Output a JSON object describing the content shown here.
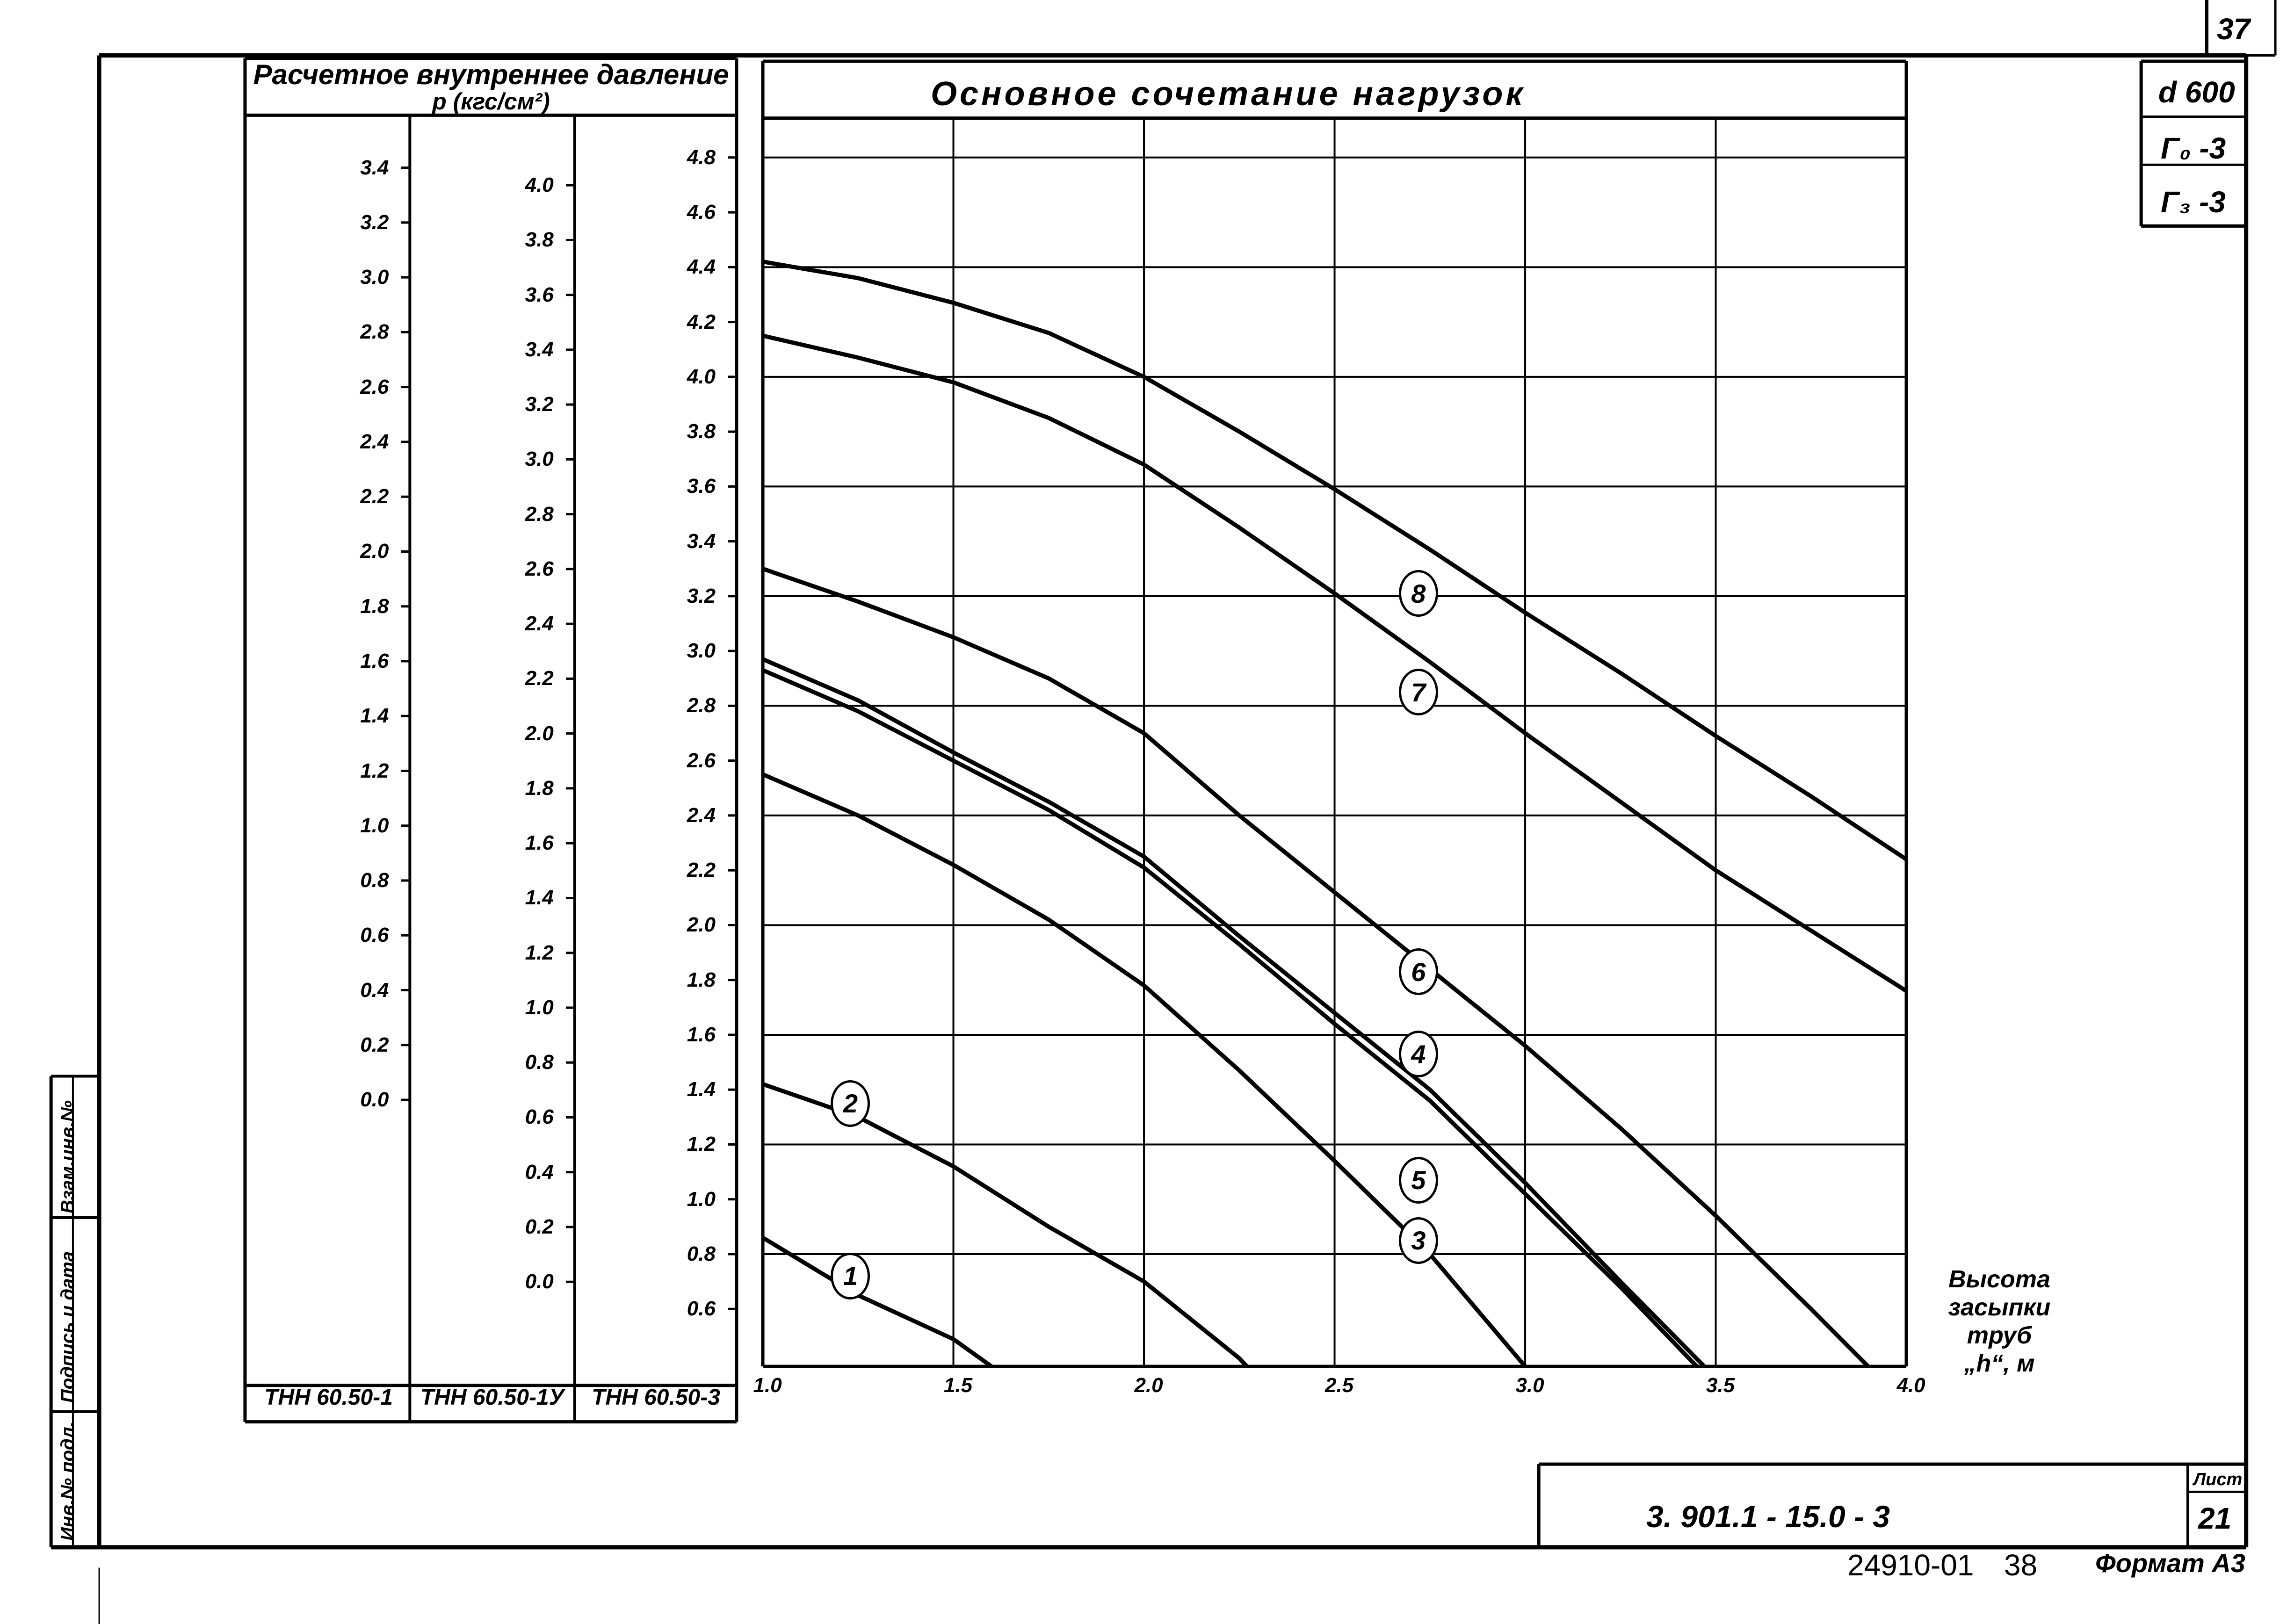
{
  "page": {
    "sheet_corner_number": "37",
    "stamp_boxes": [
      "d 600",
      "Г₀ -3",
      "Г₃ -3"
    ],
    "pressure_header_line1": "Расчетное внутреннее давление",
    "pressure_header_line2": "p (кгс/см²)",
    "chart_title": "Основное сочетание нагрузок",
    "x_axis_label_lines": [
      "Высота",
      "засыпки",
      "труб",
      "„h“, м"
    ],
    "scale_columns": [
      {
        "name": "ТНН 60.50-1",
        "ticks": [
          "3.4",
          "3.2",
          "3.0",
          "2.8",
          "2.6",
          "2.4",
          "2.2",
          "2.0",
          "1.8",
          "1.6",
          "1.4",
          "1.2",
          "1.0",
          "0.8",
          "0.6",
          "0.4",
          "0.2",
          "0.0"
        ]
      },
      {
        "name": "ТНН 60.50-1У",
        "ticks": [
          "4.0",
          "3.8",
          "3.6",
          "3.4",
          "3.2",
          "3.0",
          "2.8",
          "2.6",
          "2.4",
          "2.2",
          "2.0",
          "1.8",
          "1.6",
          "1.4",
          "1.2",
          "1.0",
          "0.8",
          "0.6",
          "0.4",
          "0.2",
          "0.0"
        ]
      },
      {
        "name": "ТНН 60.50-3",
        "ticks": [
          "4.8",
          "4.6",
          "4.4",
          "4.2",
          "4.0",
          "3.8",
          "3.6",
          "3.4",
          "3.2",
          "3.0",
          "2.8",
          "2.6",
          "2.4",
          "2.2",
          "2.0",
          "1.8",
          "1.6",
          "1.4",
          "1.2",
          "1.0",
          "0.8",
          "0.6"
        ]
      }
    ],
    "left_stamp": [
      "Взам.инв.№",
      "Подпись и дата",
      "Инв.№ подл."
    ],
    "title_block": {
      "designation": "3. 901.1 - 15.0 - 3",
      "sheet_label": "Лист",
      "sheet_number": "21"
    },
    "footer": {
      "order_number": "24910-01",
      "page_number": "38",
      "format": "Формат А3"
    }
  },
  "chart_data": {
    "type": "line",
    "title": "Основное сочетание нагрузок",
    "xlabel": "Высота засыпки труб „h“, м",
    "ylabel": "Расчетное внутреннее давление p (кгс/см²)",
    "xlim": [
      1.0,
      4.0
    ],
    "x_ticks": [
      "1.0",
      "1.5",
      "2.0",
      "2.5",
      "3.0",
      "3.5",
      "4.0"
    ],
    "ylim_reference_scale": "ТНН 60.50-3",
    "ylim": [
      0.39,
      4.94
    ],
    "grid": true,
    "series": [
      {
        "name": "1",
        "x": [
          1.0,
          1.25,
          1.5,
          1.6
        ],
        "y": [
          0.86,
          0.65,
          0.49,
          0.39
        ]
      },
      {
        "name": "2",
        "x": [
          1.0,
          1.25,
          1.5,
          1.75,
          2.0,
          2.25,
          2.27
        ],
        "y": [
          1.42,
          1.3,
          1.12,
          0.9,
          0.7,
          0.42,
          0.39
        ]
      },
      {
        "name": "3",
        "x": [
          1.0,
          1.25,
          1.5,
          1.75,
          2.0,
          2.25,
          2.5,
          2.75,
          3.0
        ],
        "y": [
          2.55,
          2.4,
          2.22,
          2.02,
          1.78,
          1.47,
          1.14,
          0.8,
          0.39
        ]
      },
      {
        "name": "4",
        "x": [
          1.0,
          1.25,
          1.5,
          1.75,
          2.0,
          2.25,
          2.5,
          2.75,
          3.0,
          3.25,
          3.47
        ],
        "y": [
          2.97,
          2.82,
          2.63,
          2.45,
          2.25,
          1.96,
          1.68,
          1.4,
          1.06,
          0.7,
          0.39
        ]
      },
      {
        "name": "5",
        "x": [
          1.0,
          1.25,
          1.5,
          1.75,
          2.0,
          2.25,
          2.5,
          2.75,
          3.0,
          3.25,
          3.45
        ],
        "y": [
          2.93,
          2.78,
          2.6,
          2.42,
          2.21,
          1.93,
          1.64,
          1.36,
          1.02,
          0.68,
          0.39
        ]
      },
      {
        "name": "6",
        "x": [
          1.0,
          1.25,
          1.5,
          1.75,
          2.0,
          2.25,
          2.5,
          2.75,
          3.0,
          3.25,
          3.5,
          3.75,
          3.9
        ],
        "y": [
          3.3,
          3.18,
          3.05,
          2.9,
          2.7,
          2.4,
          2.12,
          1.84,
          1.56,
          1.26,
          0.94,
          0.6,
          0.39
        ]
      },
      {
        "name": "7",
        "x": [
          1.0,
          1.25,
          1.5,
          1.75,
          2.0,
          2.25,
          2.5,
          2.75,
          3.0,
          3.25,
          3.5,
          3.75,
          4.0
        ],
        "y": [
          4.15,
          4.07,
          3.98,
          3.85,
          3.68,
          3.45,
          3.21,
          2.96,
          2.7,
          2.45,
          2.2,
          1.98,
          1.76
        ]
      },
      {
        "name": "8",
        "x": [
          1.0,
          1.25,
          1.5,
          1.75,
          2.0,
          2.25,
          2.5,
          2.75,
          3.0,
          3.25,
          3.5,
          3.75,
          4.0
        ],
        "y": [
          4.42,
          4.36,
          4.27,
          4.16,
          4.0,
          3.8,
          3.59,
          3.37,
          3.14,
          2.92,
          2.69,
          2.47,
          2.24
        ]
      }
    ],
    "curve_label_positions": [
      {
        "name": "1",
        "x": 1.23,
        "y": 0.72
      },
      {
        "name": "2",
        "x": 1.23,
        "y": 1.35
      },
      {
        "name": "3",
        "x": 2.72,
        "y": 0.85
      },
      {
        "name": "4",
        "x": 2.72,
        "y": 1.53
      },
      {
        "name": "5",
        "x": 2.72,
        "y": 1.07
      },
      {
        "name": "6",
        "x": 2.72,
        "y": 1.83
      },
      {
        "name": "7",
        "x": 2.72,
        "y": 2.85
      },
      {
        "name": "8",
        "x": 2.72,
        "y": 3.21
      }
    ]
  }
}
